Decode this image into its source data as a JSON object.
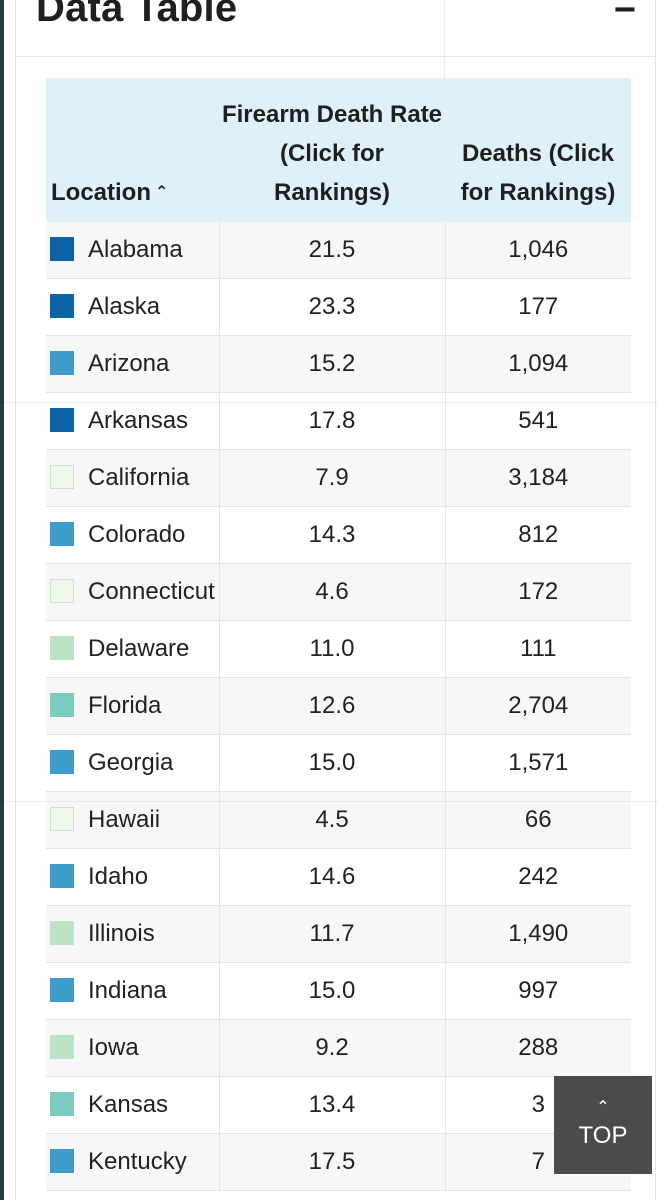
{
  "title": "Data Table",
  "collapse_label": "−",
  "columns": {
    "location": "Location",
    "rate": "Firearm Death Rate (Click for Rankings)",
    "deaths": "Deaths (Click for Rankings)"
  },
  "rows": [
    {
      "location": "Alabama",
      "rate": "21.5",
      "deaths": "1,046",
      "color": "#0b62a4"
    },
    {
      "location": "Alaska",
      "rate": "23.3",
      "deaths": "177",
      "color": "#0b62a4"
    },
    {
      "location": "Arizona",
      "rate": "15.2",
      "deaths": "1,094",
      "color": "#3e9cc8"
    },
    {
      "location": "Arkansas",
      "rate": "17.8",
      "deaths": "541",
      "color": "#0b62a4"
    },
    {
      "location": "California",
      "rate": "7.9",
      "deaths": "3,184",
      "color": "#edf8e9"
    },
    {
      "location": "Colorado",
      "rate": "14.3",
      "deaths": "812",
      "color": "#3e9cc8"
    },
    {
      "location": "Connecticut",
      "rate": "4.6",
      "deaths": "172",
      "color": "#edf8e9"
    },
    {
      "location": "Delaware",
      "rate": "11.0",
      "deaths": "111",
      "color": "#bde3c5"
    },
    {
      "location": "Florida",
      "rate": "12.6",
      "deaths": "2,704",
      "color": "#7ccbc1"
    },
    {
      "location": "Georgia",
      "rate": "15.0",
      "deaths": "1,571",
      "color": "#3e9cc8"
    },
    {
      "location": "Hawaii",
      "rate": "4.5",
      "deaths": "66",
      "color": "#edf8e9"
    },
    {
      "location": "Idaho",
      "rate": "14.6",
      "deaths": "242",
      "color": "#3e9cc8"
    },
    {
      "location": "Illinois",
      "rate": "11.7",
      "deaths": "1,490",
      "color": "#bde3c5"
    },
    {
      "location": "Indiana",
      "rate": "15.0",
      "deaths": "997",
      "color": "#3e9cc8"
    },
    {
      "location": "Iowa",
      "rate": "9.2",
      "deaths": "288",
      "color": "#bde3c5"
    },
    {
      "location": "Kansas",
      "rate": "13.4",
      "deaths": "3",
      "color": "#7ccbc1"
    },
    {
      "location": "Kentucky",
      "rate": "17.5",
      "deaths": "7",
      "color": "#3e9cc8"
    }
  ],
  "top_button": {
    "arrow": "⌃",
    "label": "TOP"
  }
}
